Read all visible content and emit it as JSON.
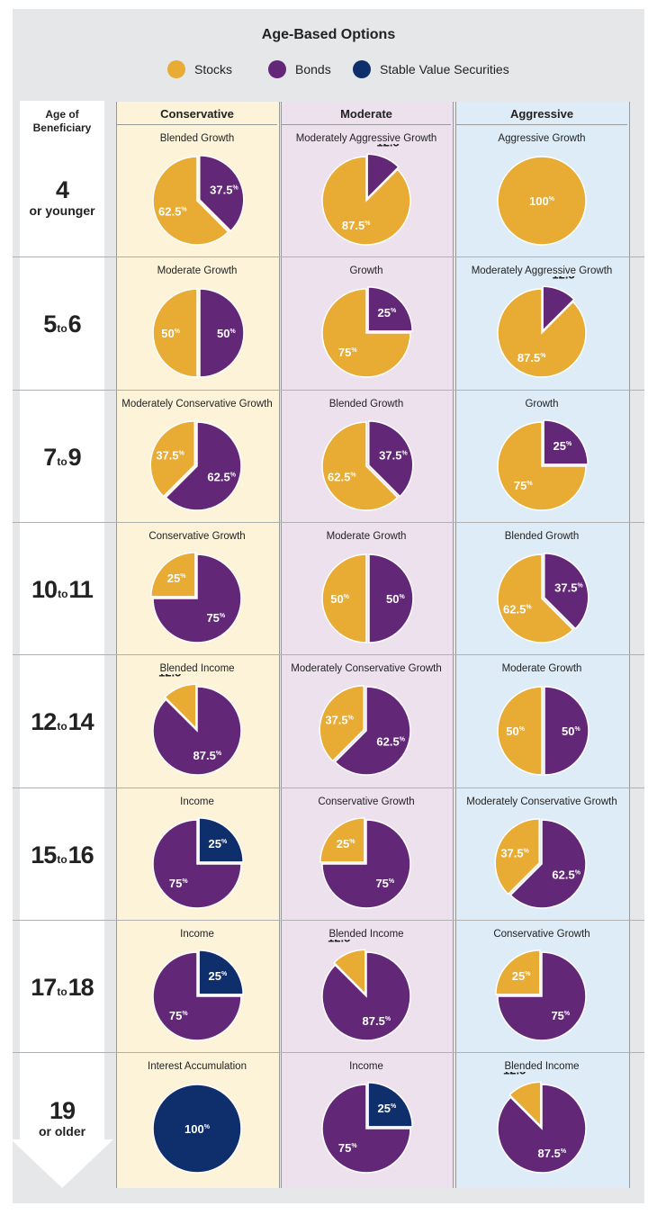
{
  "title": "Age-Based Options",
  "legend": [
    {
      "label": "Stocks",
      "color": "#e8ab33"
    },
    {
      "label": "Bonds",
      "color": "#622877"
    },
    {
      "label": "Stable Value Securities",
      "color": "#0e2f6b"
    }
  ],
  "age_header": {
    "line1": "Age of",
    "line2": "Beneficiary"
  },
  "columns": [
    {
      "label": "Conservative",
      "bg": "#fdf3d9"
    },
    {
      "label": "Moderate",
      "bg": "#ede1ee"
    },
    {
      "label": "Aggressive",
      "bg": "#ddecf7"
    }
  ],
  "ages": [
    {
      "big": "4",
      "line2": "or younger"
    },
    {
      "from": "5",
      "to": "6"
    },
    {
      "from": "7",
      "to": "9"
    },
    {
      "from": "10",
      "to": "11"
    },
    {
      "from": "12",
      "to": "14"
    },
    {
      "from": "15",
      "to": "16"
    },
    {
      "from": "17",
      "to": "18"
    },
    {
      "big": "19",
      "line2": "or older"
    }
  ],
  "age_to_word": "to",
  "chart_data": {
    "type": "pie",
    "title": "Age-Based Options",
    "series_names": [
      "Stocks",
      "Bonds",
      "Stable Value Securities"
    ],
    "rows": [
      [
        {
          "name": "Blended Growth",
          "stocks": 62.5,
          "bonds": 37.5,
          "stable": 0
        },
        {
          "name": "Moderately Aggressive Growth",
          "stocks": 87.5,
          "bonds": 12.5,
          "stable": 0
        },
        {
          "name": "Aggressive Growth",
          "stocks": 100,
          "bonds": 0,
          "stable": 0
        }
      ],
      [
        {
          "name": "Moderate Growth",
          "stocks": 50,
          "bonds": 50,
          "stable": 0
        },
        {
          "name": "Growth",
          "stocks": 75,
          "bonds": 25,
          "stable": 0
        },
        {
          "name": "Moderately Aggressive Growth",
          "stocks": 87.5,
          "bonds": 12.5,
          "stable": 0
        }
      ],
      [
        {
          "name": "Moderately Conservative Growth",
          "stocks": 37.5,
          "bonds": 62.5,
          "stable": 0
        },
        {
          "name": "Blended Growth",
          "stocks": 62.5,
          "bonds": 37.5,
          "stable": 0
        },
        {
          "name": "Growth",
          "stocks": 75,
          "bonds": 25,
          "stable": 0
        }
      ],
      [
        {
          "name": "Conservative Growth",
          "stocks": 25,
          "bonds": 75,
          "stable": 0
        },
        {
          "name": "Moderate Growth",
          "stocks": 50,
          "bonds": 50,
          "stable": 0
        },
        {
          "name": "Blended Growth",
          "stocks": 62.5,
          "bonds": 37.5,
          "stable": 0
        }
      ],
      [
        {
          "name": "Blended Income",
          "stocks": 12.5,
          "bonds": 87.5,
          "stable": 0
        },
        {
          "name": "Moderately Conservative Growth",
          "stocks": 37.5,
          "bonds": 62.5,
          "stable": 0
        },
        {
          "name": "Moderate Growth",
          "stocks": 50,
          "bonds": 50,
          "stable": 0
        }
      ],
      [
        {
          "name": "Income",
          "stocks": 0,
          "bonds": 75,
          "stable": 25
        },
        {
          "name": "Conservative Growth",
          "stocks": 25,
          "bonds": 75,
          "stable": 0
        },
        {
          "name": "Moderately Conservative Growth",
          "stocks": 37.5,
          "bonds": 62.5,
          "stable": 0
        }
      ],
      [
        {
          "name": "Income",
          "stocks": 0,
          "bonds": 75,
          "stable": 25
        },
        {
          "name": "Blended Income",
          "stocks": 12.5,
          "bonds": 87.5,
          "stable": 0
        },
        {
          "name": "Conservative Growth",
          "stocks": 25,
          "bonds": 75,
          "stable": 0
        }
      ],
      [
        {
          "name": "Interest Accumulation",
          "stocks": 0,
          "bonds": 0,
          "stable": 100
        },
        {
          "name": "Income",
          "stocks": 0,
          "bonds": 75,
          "stable": 25
        },
        {
          "name": "Blended Income",
          "stocks": 12.5,
          "bonds": 87.5,
          "stable": 0
        }
      ]
    ]
  }
}
